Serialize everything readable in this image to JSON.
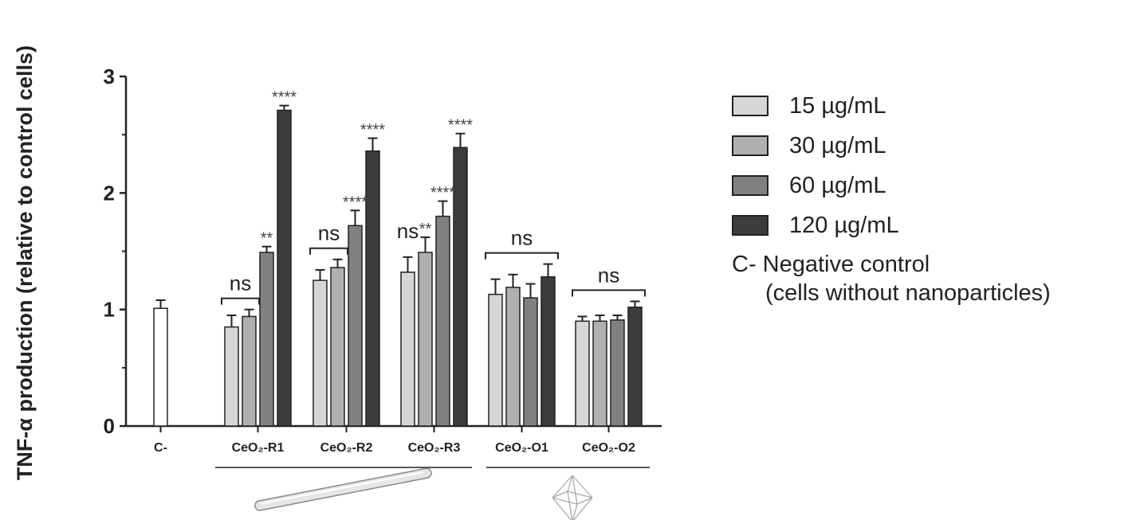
{
  "chart_data": {
    "type": "bar",
    "ylabel": "TNF-α production (relative to control cells)",
    "ylim": [
      0,
      3
    ],
    "yticks": [
      "0",
      "1",
      "2",
      "3"
    ],
    "control": {
      "label": "C-",
      "value": 1.01,
      "error": 0.07,
      "color": "#ffffff"
    },
    "groups": [
      "CeO₂-R1",
      "CeO₂-R2",
      "CeO₂-R3",
      "CeO₂-O1",
      "CeO₂-O2"
    ],
    "series": [
      {
        "name": "15 µg/mL",
        "color": "#d6d6d6",
        "values": [
          0.85,
          1.25,
          1.32,
          1.13,
          0.9
        ],
        "errors": [
          0.1,
          0.09,
          0.13,
          0.13,
          0.04
        ]
      },
      {
        "name": "30 µg/mL",
        "color": "#b0b0b0",
        "values": [
          0.94,
          1.36,
          1.49,
          1.19,
          0.9
        ],
        "errors": [
          0.06,
          0.07,
          0.13,
          0.11,
          0.05
        ]
      },
      {
        "name": "60 µg/mL",
        "color": "#808080",
        "values": [
          1.49,
          1.72,
          1.8,
          1.1,
          0.91
        ],
        "errors": [
          0.05,
          0.13,
          0.13,
          0.12,
          0.04
        ]
      },
      {
        "name": "120 µg/mL",
        "color": "#3c3c3c",
        "values": [
          2.71,
          2.36,
          2.39,
          1.28,
          1.02
        ],
        "errors": [
          0.04,
          0.11,
          0.12,
          0.11,
          0.05
        ]
      }
    ],
    "significance": [
      {
        "group": 0,
        "series": 2,
        "label": "**"
      },
      {
        "group": 0,
        "series": 3,
        "label": "****"
      },
      {
        "group": 1,
        "series": 2,
        "label": "****"
      },
      {
        "group": 1,
        "series": 3,
        "label": "****"
      },
      {
        "group": 2,
        "series": 1,
        "label": "**"
      },
      {
        "group": 2,
        "series": 2,
        "label": "****"
      },
      {
        "group": 2,
        "series": 3,
        "label": "****"
      }
    ],
    "ns_brackets": [
      {
        "group": 0,
        "from": 0,
        "to": 1,
        "label": "ns"
      },
      {
        "group": 1,
        "from": 0,
        "to": 1,
        "label": "ns"
      },
      {
        "group": 2,
        "from": 0,
        "to": 0,
        "label": "ns"
      },
      {
        "group": 3,
        "from": 0,
        "to": 3,
        "label": "ns"
      },
      {
        "group": 4,
        "from": 0,
        "to": 3,
        "label": "ns"
      }
    ],
    "shape_groups": [
      {
        "name": "rod-shape-icon",
        "groups": [
          0,
          1,
          2
        ]
      },
      {
        "name": "octahedron-shape-icon",
        "groups": [
          3,
          4
        ]
      }
    ]
  },
  "legend": {
    "items": [
      {
        "label": "15 µg/mL",
        "color": "#d6d6d6"
      },
      {
        "label": "30 µg/mL",
        "color": "#b0b0b0"
      },
      {
        "label": "60 µg/mL",
        "color": "#808080"
      },
      {
        "label": "120 µg/mL",
        "color": "#3c3c3c"
      }
    ],
    "note_line1": "C- Negative control",
    "note_line2": "(cells without nanoparticles)"
  }
}
